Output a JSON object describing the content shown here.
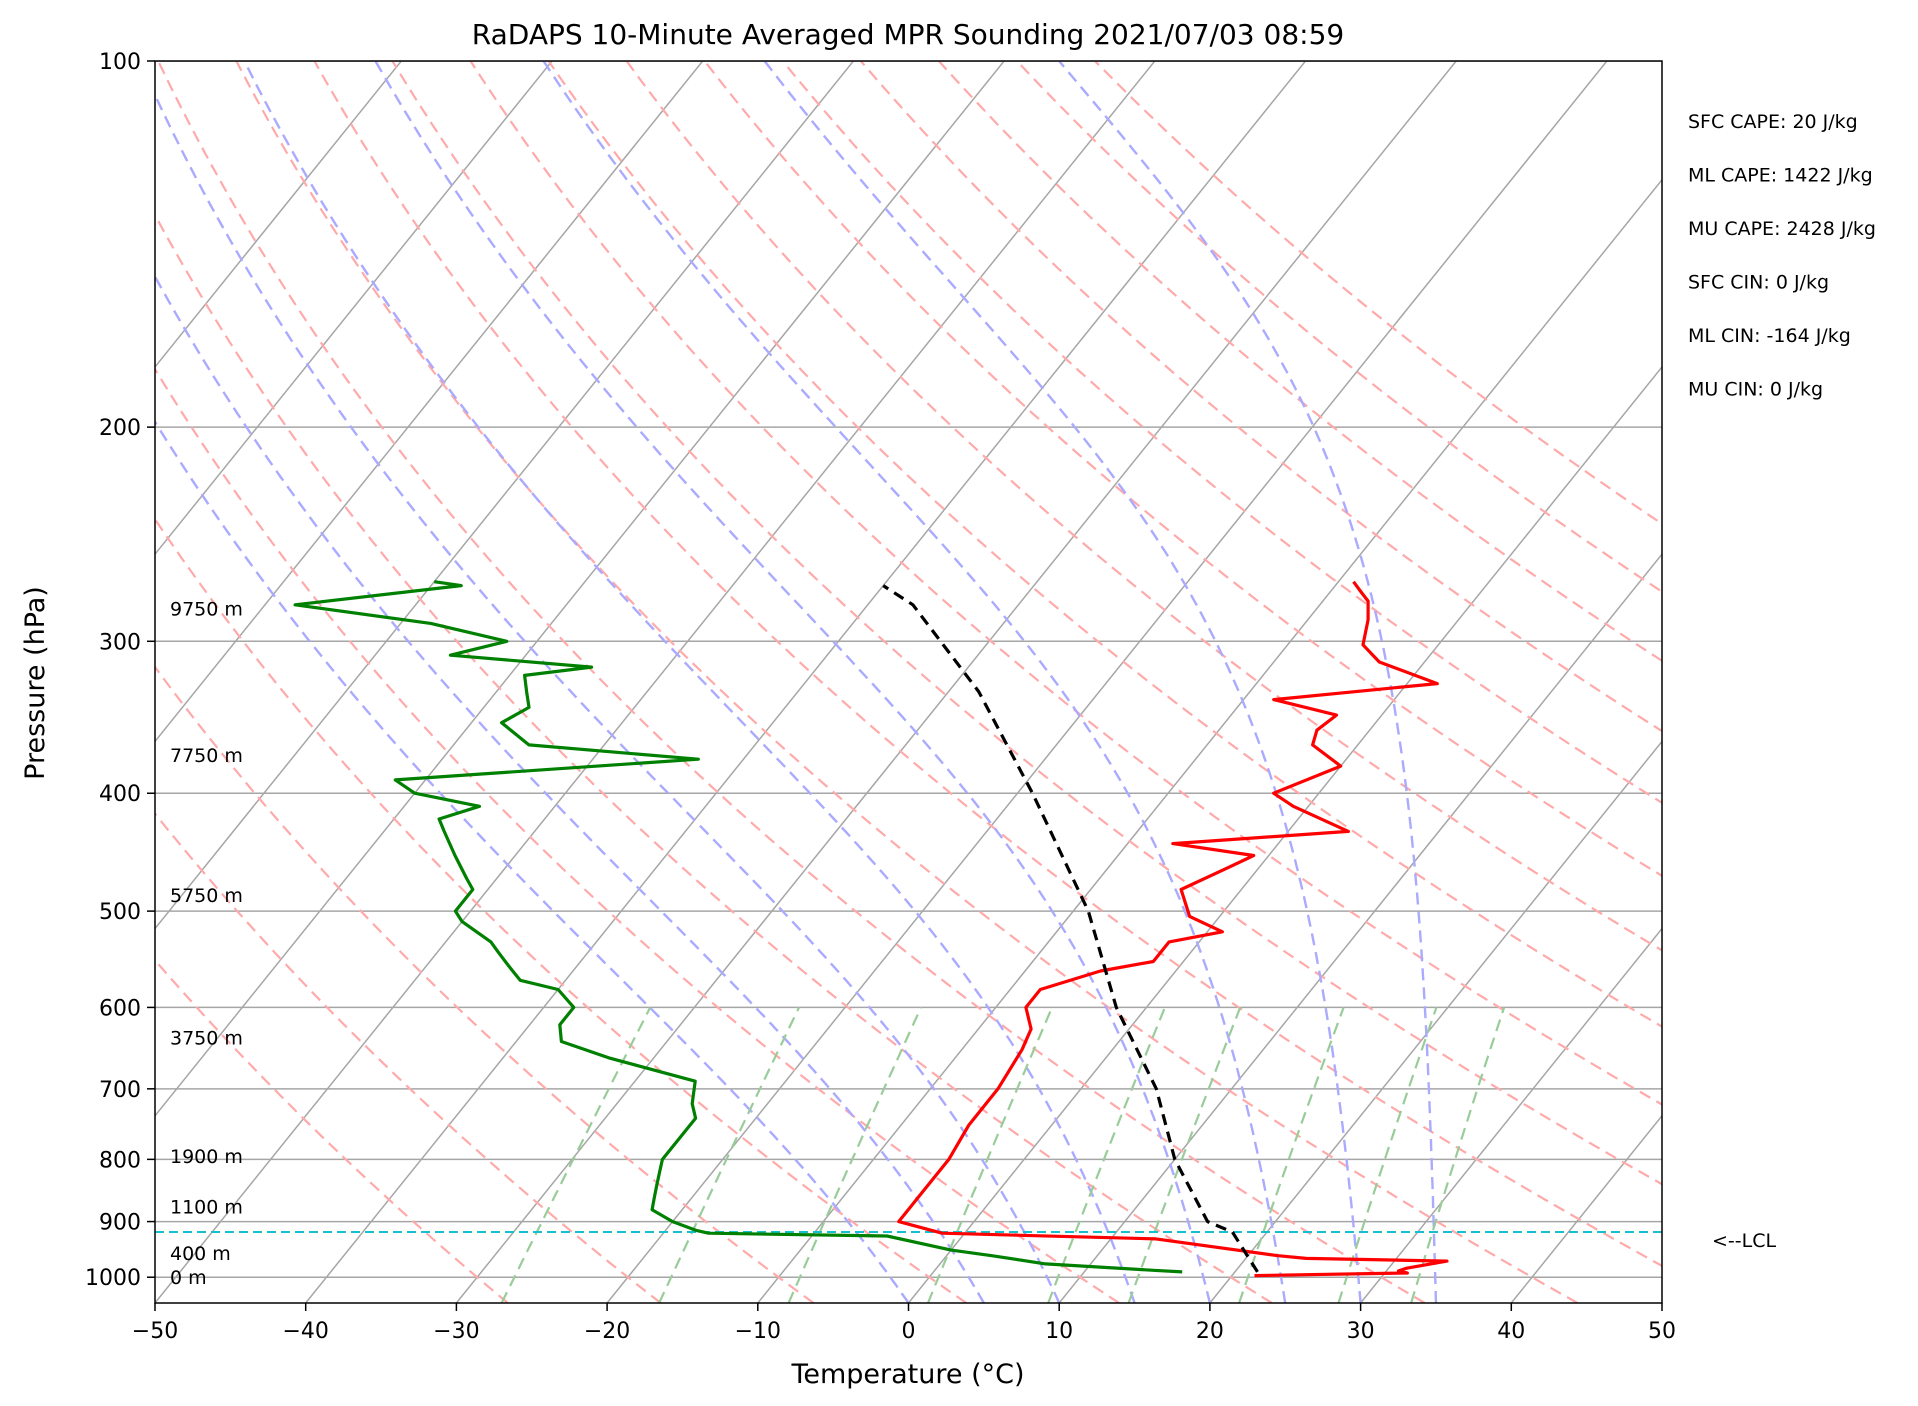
{
  "chart_data": {
    "type": "line",
    "subtype": "skew-t log-p sounding",
    "title": "RaDAPS 10-Minute Averaged MPR Sounding 2021/07/03 08:59",
    "xlabel": "Temperature (°C)",
    "ylabel": "Pressure (hPa)",
    "xlim": [
      -50,
      50
    ],
    "ylim": [
      1050,
      100
    ],
    "yscale": "log",
    "grid": true,
    "x_ticks": [
      "−50",
      "−40",
      "−30",
      "−20",
      "−10",
      "0",
      "10",
      "20",
      "30",
      "40",
      "50"
    ],
    "y_ticks": [
      {
        "p": 100,
        "label": "100"
      },
      {
        "p": 200,
        "label": "200"
      },
      {
        "p": 300,
        "label": "300"
      },
      {
        "p": 400,
        "label": "400"
      },
      {
        "p": 500,
        "label": "500"
      },
      {
        "p": 600,
        "label": "600"
      },
      {
        "p": 700,
        "label": "700"
      },
      {
        "p": 800,
        "label": "800"
      },
      {
        "p": 900,
        "label": "900"
      },
      {
        "p": 1000,
        "label": "1000"
      }
    ],
    "height_labels": [
      {
        "p": 282,
        "label": "9750 m"
      },
      {
        "p": 372,
        "label": "7750 m"
      },
      {
        "p": 485,
        "label": "5750 m"
      },
      {
        "p": 635,
        "label": "3750 m"
      },
      {
        "p": 795,
        "label": "1900 m"
      },
      {
        "p": 875,
        "label": "1100 m"
      },
      {
        "p": 955,
        "label": "400 m"
      },
      {
        "p": 1000,
        "label": "0 m"
      }
    ],
    "stats": [
      "SFC CAPE: 20 J/kg",
      "ML CAPE: 1422 J/kg",
      "MU CAPE: 2428 J/kg",
      "SFC CIN: 0 J/kg",
      "ML CIN: -164 J/kg",
      "MU CIN: 0 J/kg"
    ],
    "lcl": {
      "p": 918,
      "label": "<--LCL",
      "color": "#17becf"
    },
    "series": [
      {
        "name": "",
        "role": "temperature",
        "color": "#ff0000",
        "points": [
          [
            21.5,
            997
          ],
          [
            31.5,
            992
          ],
          [
            30.8,
            988
          ],
          [
            31.2,
            983
          ],
          [
            33.5,
            970
          ],
          [
            24,
            965
          ],
          [
            22,
            960
          ],
          [
            13,
            930
          ],
          [
            -1.5,
            920
          ],
          [
            -5,
            900
          ],
          [
            -5,
            850
          ],
          [
            -5,
            800
          ],
          [
            -5.5,
            750
          ],
          [
            -5.5,
            700
          ],
          [
            -6,
            650
          ],
          [
            -6.5,
            625
          ],
          [
            -8,
            600
          ],
          [
            -8,
            580
          ],
          [
            -5,
            560
          ],
          [
            -2,
            550
          ],
          [
            -2,
            530
          ],
          [
            1,
            520
          ],
          [
            -2,
            505
          ],
          [
            -4,
            480
          ],
          [
            -2,
            460
          ],
          [
            -1,
            450
          ],
          [
            -7,
            440
          ],
          [
            4,
            430
          ],
          [
            -1,
            410
          ],
          [
            -3,
            400
          ],
          [
            0,
            380
          ],
          [
            -3,
            365
          ],
          [
            -3.5,
            355
          ],
          [
            -3,
            345
          ],
          [
            -8,
            335
          ],
          [
            2,
            325
          ],
          [
            -3,
            312
          ],
          [
            -5,
            302
          ],
          [
            -6,
            288
          ],
          [
            -7,
            278
          ],
          [
            -8,
            273
          ],
          [
            -9,
            268
          ]
        ]
      },
      {
        "name": "",
        "role": "dewpoint",
        "color": "#008000",
        "points": [
          [
            16.5,
            990
          ],
          [
            14.5,
            987
          ],
          [
            7,
            975
          ],
          [
            3,
            960
          ],
          [
            0,
            950
          ],
          [
            -5,
            925
          ],
          [
            -17,
            920
          ],
          [
            -18,
            915
          ],
          [
            -20,
            900
          ],
          [
            -22,
            880
          ],
          [
            -22.5,
            860
          ],
          [
            -23,
            840
          ],
          [
            -23.5,
            820
          ],
          [
            -24,
            800
          ],
          [
            -24,
            780
          ],
          [
            -24,
            760
          ],
          [
            -24,
            740
          ],
          [
            -25,
            720
          ],
          [
            -26,
            690
          ],
          [
            -33,
            660
          ],
          [
            -37,
            640
          ],
          [
            -38,
            620
          ],
          [
            -38,
            600
          ],
          [
            -40,
            580
          ],
          [
            -43,
            570
          ],
          [
            -44,
            560
          ],
          [
            -45,
            550
          ],
          [
            -46,
            540
          ],
          [
            -47,
            530
          ],
          [
            -50,
            510
          ],
          [
            -51,
            500
          ],
          [
            -51,
            480
          ],
          [
            -52,
            470
          ],
          [
            -54,
            450
          ],
          [
            -56,
            430
          ],
          [
            -57,
            420
          ],
          [
            -55,
            410
          ],
          [
            -60,
            400
          ],
          [
            -62,
            390
          ],
          [
            -43,
            375
          ],
          [
            -55,
            365
          ],
          [
            -58,
            350
          ],
          [
            -57,
            340
          ],
          [
            -58,
            330
          ],
          [
            -59,
            320
          ],
          [
            -55,
            315
          ],
          [
            -65,
            308
          ],
          [
            -62,
            300
          ],
          [
            -68,
            290
          ],
          [
            -78,
            280
          ],
          [
            -68,
            270
          ],
          [
            -70,
            268
          ]
        ]
      },
      {
        "name": "",
        "role": "parcel profile",
        "color": "#000000",
        "points": [
          [
            21.5,
            990
          ],
          [
            17.7,
            918
          ],
          [
            15.5,
            900
          ],
          [
            10,
            800
          ],
          [
            5,
            700
          ],
          [
            -2,
            600
          ],
          [
            -9,
            500
          ],
          [
            -19,
            400
          ],
          [
            -28,
            330
          ],
          [
            -37,
            280
          ],
          [
            -40,
            270
          ]
        ]
      }
    ],
    "background_lines": {
      "isobars": [
        100,
        200,
        300,
        400,
        500,
        600,
        700,
        800,
        900,
        1000
      ],
      "isotherms_c": [
        -100,
        -90,
        -80,
        -70,
        -60,
        -50,
        -40,
        -30,
        -20,
        -10,
        0,
        10,
        20,
        30,
        40,
        50
      ],
      "dry_adiabats_c": [
        -30,
        -20,
        -10,
        0,
        10,
        20,
        30,
        40,
        50,
        60,
        70,
        80,
        90,
        100,
        110,
        120,
        130,
        140,
        150
      ],
      "moist_adiabats_c": [
        0,
        5,
        10,
        15,
        20,
        25,
        30,
        35
      ],
      "mixing_ratios_gkg": [
        0.4,
        1,
        2,
        4,
        7,
        10,
        16,
        24,
        32
      ],
      "colors": {
        "grid": "#a6a6a6",
        "dry_adiabat": "#ffaaaa",
        "moist_adiabat": "#aaaaff",
        "mixing_ratio": "#99cc99"
      }
    }
  }
}
